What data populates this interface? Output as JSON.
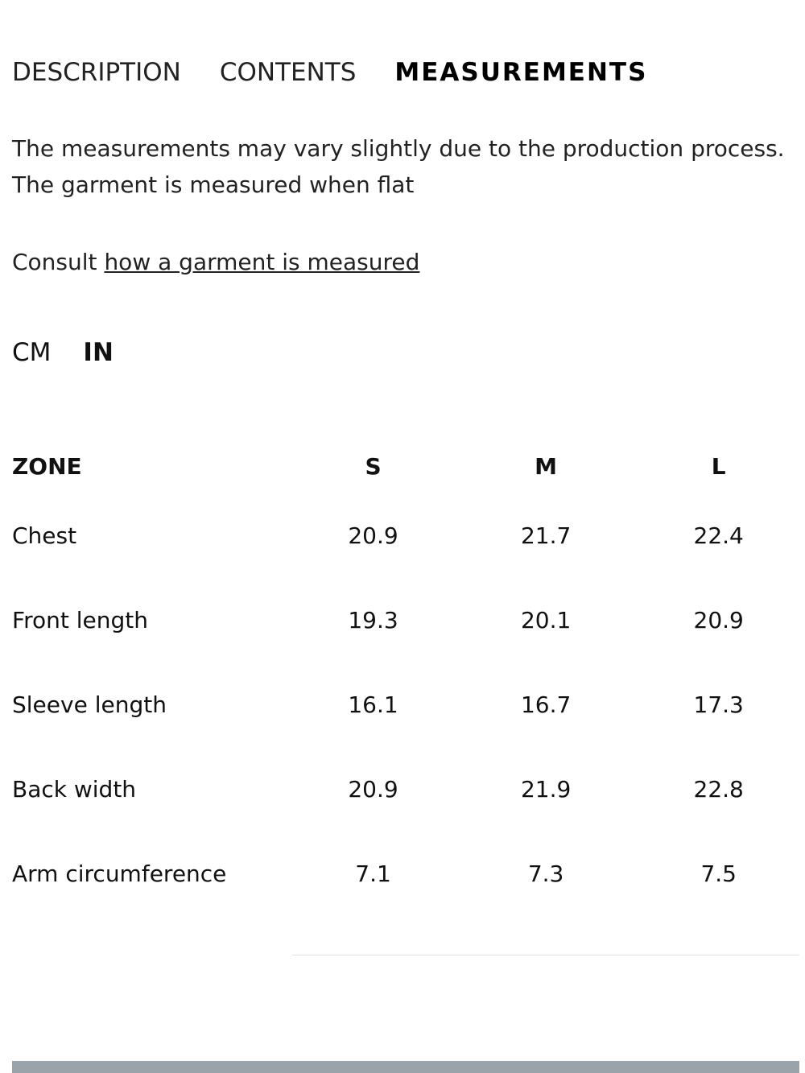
{
  "tabs": [
    "DESCRIPTION",
    "CONTENTS",
    "MEASUREMENTS"
  ],
  "intro": [
    "The measurements may vary slightly due to the production process.",
    "The garment is measured when flat"
  ],
  "consult": {
    "prefix": "Consult",
    "link": "how a garment is measured"
  },
  "units": [
    "CM",
    "IN"
  ],
  "table": {
    "header": [
      "ZONE",
      "S",
      "M",
      "L"
    ],
    "rows": [
      [
        "Chest",
        "20.9",
        "21.7",
        "22.4"
      ],
      [
        "Front length",
        "19.3",
        "20.1",
        "20.9"
      ],
      [
        "Sleeve length",
        "16.1",
        "16.7",
        "17.3"
      ],
      [
        "Back width",
        "20.9",
        "21.9",
        "22.8"
      ],
      [
        "Arm circumference",
        "7.1",
        "7.3",
        "7.5"
      ]
    ]
  }
}
